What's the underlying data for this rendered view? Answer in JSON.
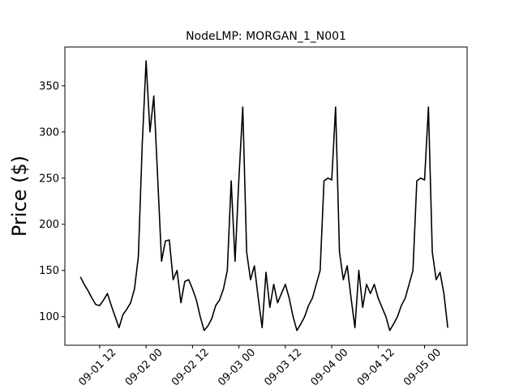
{
  "chart_data": {
    "type": "line",
    "title": "NodeLMP: MORGAN_1_N001",
    "y_label": "Price ($)",
    "x": [
      "09-01 07",
      "09-01 08",
      "09-01 09",
      "09-01 10",
      "09-01 11",
      "09-01 12",
      "09-01 13",
      "09-01 14",
      "09-01 15",
      "09-01 16",
      "09-01 17",
      "09-01 18",
      "09-01 19",
      "09-01 20",
      "09-01 21",
      "09-01 22",
      "09-01 23",
      "09-02 00",
      "09-02 01",
      "09-02 02",
      "09-02 03",
      "09-02 04",
      "09-02 05",
      "09-02 06",
      "09-02 07",
      "09-02 08",
      "09-02 09",
      "09-02 10",
      "09-02 11",
      "09-02 12",
      "09-02 13",
      "09-02 14",
      "09-02 15",
      "09-02 16",
      "09-02 17",
      "09-02 18",
      "09-02 19",
      "09-02 20",
      "09-02 21",
      "09-02 22",
      "09-02 23",
      "09-03 00",
      "09-03 01",
      "09-03 02",
      "09-03 03",
      "09-03 04",
      "09-03 05",
      "09-03 06",
      "09-03 07",
      "09-03 08",
      "09-03 09",
      "09-03 10",
      "09-03 11",
      "09-03 12",
      "09-03 13",
      "09-03 14",
      "09-03 15",
      "09-03 16",
      "09-03 17",
      "09-03 18",
      "09-03 19",
      "09-03 20",
      "09-03 21",
      "09-03 22",
      "09-03 23",
      "09-04 00",
      "09-04 01",
      "09-04 02",
      "09-04 03",
      "09-04 04",
      "09-04 05",
      "09-04 06",
      "09-04 07",
      "09-04 08",
      "09-04 09",
      "09-04 10",
      "09-04 11",
      "09-04 12",
      "09-04 13",
      "09-04 14",
      "09-04 15",
      "09-04 16",
      "09-04 17",
      "09-04 18",
      "09-04 19",
      "09-04 20",
      "09-04 21",
      "09-04 22",
      "09-04 23",
      "09-05 00",
      "09-05 01",
      "09-05 02",
      "09-05 03",
      "09-05 04",
      "09-05 05",
      "09-05 06"
    ],
    "series": [
      {
        "color": "#000000",
        "values": [
          143,
          135,
          128,
          120,
          113,
          112,
          118,
          125,
          112,
          100,
          88,
          102,
          108,
          115,
          130,
          165,
          286,
          377,
          300,
          339,
          250,
          160,
          182,
          183,
          140,
          150,
          115,
          138,
          140,
          130,
          118,
          100,
          85,
          90,
          98,
          112,
          118,
          130,
          150,
          247,
          160,
          250,
          327,
          170,
          140,
          155,
          120,
          88,
          148,
          110,
          135,
          115,
          125,
          135,
          120,
          100,
          85,
          92,
          100,
          112,
          120,
          135,
          150,
          247,
          250,
          248,
          327,
          170,
          140,
          155,
          120,
          88,
          150,
          110,
          135,
          125,
          135,
          120,
          110,
          100,
          85,
          92,
          100,
          112,
          120,
          135,
          150,
          247,
          250,
          248,
          327,
          170,
          140,
          148,
          125,
          88
        ]
      }
    ],
    "xlim": [
      "09-01 03",
      "09-05 11"
    ],
    "xticks": [
      "09-01 12",
      "09-02 00",
      "09-02 12",
      "09-03 00",
      "09-03 12",
      "09-04 00",
      "09-04 12",
      "09-05 00"
    ],
    "ylim": [
      69,
      392
    ],
    "yticks": [
      100,
      150,
      200,
      250,
      300,
      350
    ],
    "grid": false
  }
}
